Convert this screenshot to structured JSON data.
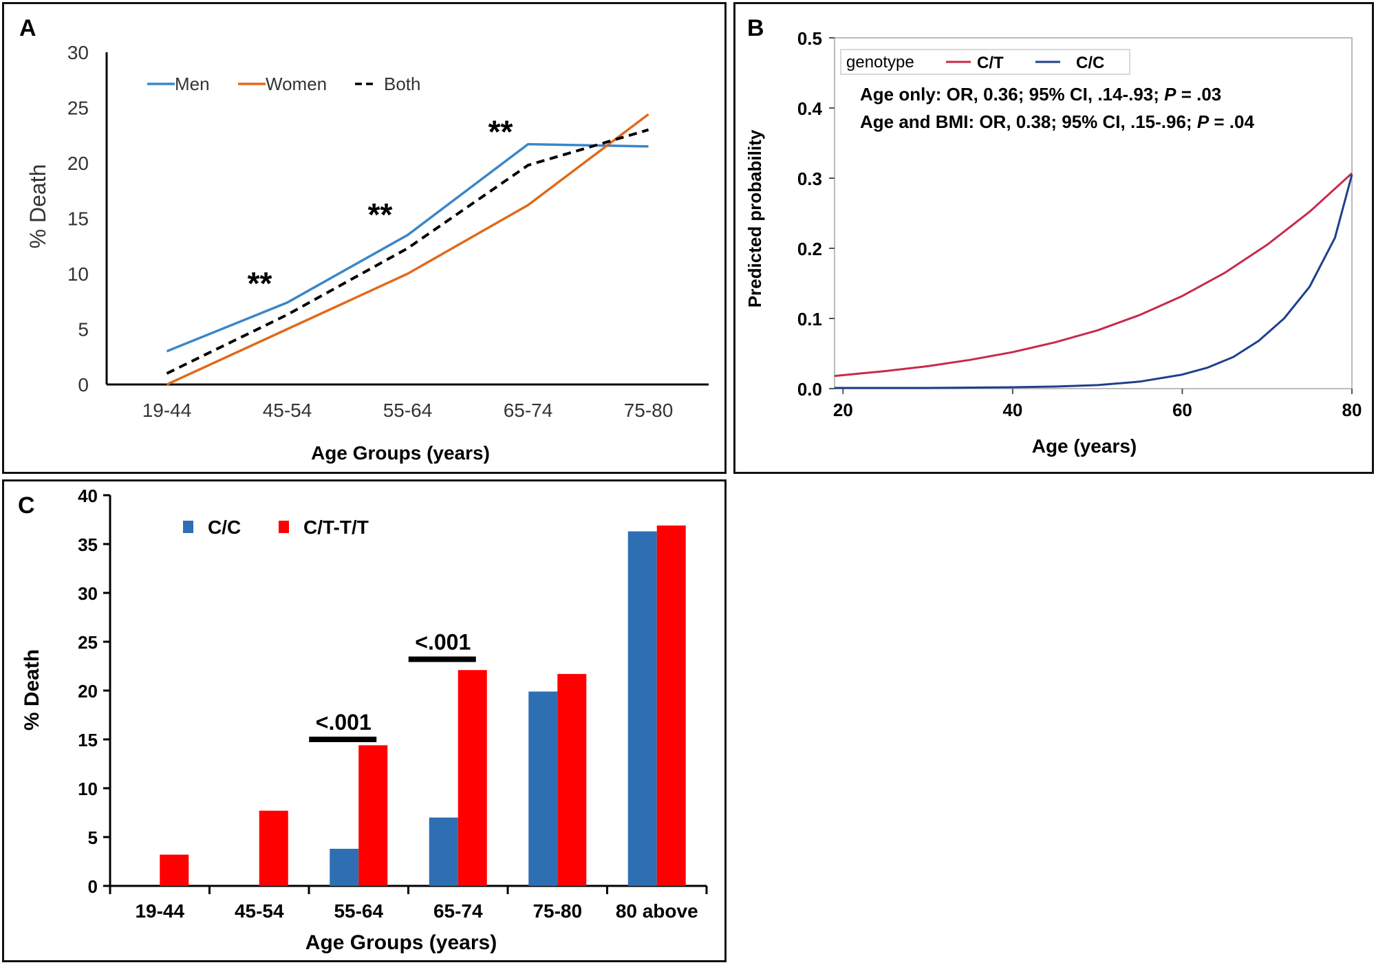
{
  "colors": {
    "men": "#3a86c8",
    "women": "#e06a1b",
    "both": "#000000",
    "ct": "#c8294a",
    "cc_line": "#1e3f8a",
    "cc_bar": "#2e6fb4",
    "ctt_bar": "#ff0000"
  },
  "chart_data": [
    {
      "panel_label": "A",
      "type": "line",
      "categories": [
        "19-44",
        "45-54",
        "55-64",
        "65-74",
        "75-80"
      ],
      "xlabel": "Age Groups (years)",
      "ylabel": "% Death",
      "ylim": [
        0,
        30
      ],
      "yticks": [
        "0",
        "5",
        "10",
        "15",
        "20",
        "25",
        "30"
      ],
      "legend_position": "top-left",
      "grid": false,
      "series": [
        {
          "name": "Men",
          "style": "solid",
          "color_key": "men",
          "values": [
            3.0,
            7.4,
            13.5,
            21.7,
            21.5
          ]
        },
        {
          "name": "Women",
          "style": "solid",
          "color_key": "women",
          "values": [
            0.0,
            5.0,
            10.0,
            16.2,
            24.4
          ]
        },
        {
          "name": "Both",
          "style": "dashed",
          "color_key": "both",
          "values": [
            1.0,
            6.3,
            12.3,
            19.8,
            23.0
          ]
        }
      ],
      "annotations": [
        {
          "text": "**",
          "category": "45-54",
          "y": 9.5
        },
        {
          "text": "**",
          "category": "55-64",
          "y": 15.7
        },
        {
          "text": "**",
          "category": "65-74",
          "y": 23.2
        }
      ]
    },
    {
      "panel_label": "B",
      "type": "line",
      "xlabel": "Age (years)",
      "ylabel": "Predicted probability",
      "xlim": [
        19,
        80
      ],
      "ylim": [
        0,
        0.5
      ],
      "xticks": [
        20,
        40,
        60,
        80
      ],
      "xtick_labels": [
        "20",
        "40",
        "60",
        "80"
      ],
      "yticks": [
        0,
        0.1,
        0.2,
        0.3,
        0.4,
        0.5
      ],
      "ytick_labels": [
        "0.0",
        "0.1",
        "0.2",
        "0.3",
        "0.4",
        "0.5"
      ],
      "legend_title": "genotype",
      "legend_position": "top-left",
      "grid": false,
      "annotation_lines": [
        {
          "prefix": "Age only: OR, 0.36; 95% CI, .14-.93; ",
          "p_label": "P",
          "suffix": " = .03"
        },
        {
          "prefix": "Age and BMI: OR, 0.38; 95% CI, .15-.96; ",
          "p_label": "P",
          "suffix": " = .04"
        }
      ],
      "series": [
        {
          "name": "C/T",
          "color_key": "ct",
          "x": [
            19,
            25,
            30,
            35,
            40,
            45,
            50,
            55,
            60,
            65,
            70,
            75,
            80
          ],
          "y": [
            0.018,
            0.025,
            0.032,
            0.041,
            0.052,
            0.066,
            0.083,
            0.105,
            0.132,
            0.165,
            0.205,
            0.252,
            0.307
          ]
        },
        {
          "name": "C/C",
          "color_key": "cc_line",
          "x": [
            19,
            30,
            40,
            45,
            50,
            55,
            60,
            63,
            66,
            69,
            72,
            75,
            78,
            80
          ],
          "y": [
            0.001,
            0.001,
            0.002,
            0.003,
            0.005,
            0.01,
            0.02,
            0.03,
            0.045,
            0.068,
            0.1,
            0.145,
            0.215,
            0.305
          ]
        }
      ]
    },
    {
      "panel_label": "C",
      "type": "bar",
      "categories": [
        "19-44",
        "45-54",
        "55-64",
        "65-74",
        "75-80",
        "80 above"
      ],
      "xlabel": "Age Groups (years)",
      "ylabel": "% Death",
      "ylim": [
        0,
        40
      ],
      "yticks": [
        "0",
        "5",
        "10",
        "15",
        "20",
        "25",
        "30",
        "35",
        "40"
      ],
      "legend_position": "top-left",
      "grid": false,
      "series": [
        {
          "name": "C/C",
          "color_key": "cc_bar",
          "values": [
            0,
            0,
            3.8,
            7.0,
            19.9,
            36.3
          ]
        },
        {
          "name": "C/T-T/T",
          "color_key": "ctt_bar",
          "values": [
            3.2,
            7.7,
            14.4,
            22.1,
            21.7,
            36.9
          ]
        }
      ],
      "significance": [
        {
          "text": "<.001",
          "category": "55-64",
          "y": 15.0
        },
        {
          "text": "<.001",
          "category": "65-74",
          "y": 23.2
        }
      ]
    }
  ]
}
